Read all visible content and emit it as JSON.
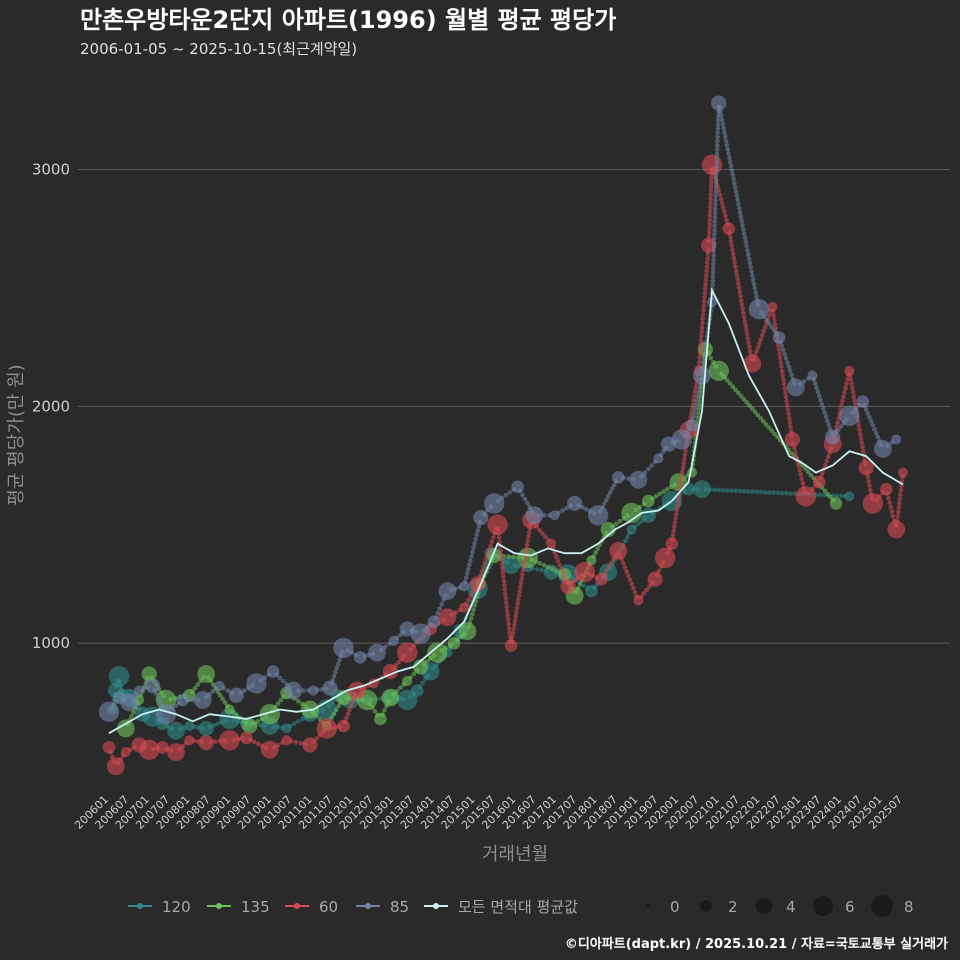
{
  "chart_data": {
    "type": "scatter",
    "title": "만촌우방타운2단지 아파트(1996) 월별 평균 평당가",
    "subtitle": "2006-01-05 ~ 2025-10-15(최근계약일)",
    "xlabel": "거래년월",
    "ylabel": "평균 평당가(만 원)",
    "ylim": [
      380,
      3420
    ],
    "yticks": [
      1000,
      2000,
      3000
    ],
    "xticks": [
      "200601",
      "200607",
      "200701",
      "200707",
      "200801",
      "200807",
      "200901",
      "200907",
      "201001",
      "201007",
      "201101",
      "201107",
      "201201",
      "201207",
      "201301",
      "201307",
      "201401",
      "201407",
      "201501",
      "201507",
      "201601",
      "201607",
      "201701",
      "201707",
      "201801",
      "201807",
      "201901",
      "201907",
      "202001",
      "202007",
      "202101",
      "202107",
      "202201",
      "202207",
      "202301",
      "202307",
      "202401",
      "202407",
      "202501",
      "202507"
    ],
    "x_range": [
      "2006-01",
      "2025-10"
    ],
    "grid": true,
    "series": [
      {
        "name": "120",
        "color": "#2e8b87",
        "points": [
          [
            "2006-02",
            720
          ],
          [
            "2006-03",
            800
          ],
          [
            "2006-04",
            860
          ],
          [
            "2006-05",
            780
          ],
          [
            "2006-07",
            770
          ],
          [
            "2006-09",
            740
          ],
          [
            "2006-11",
            700
          ],
          [
            "2007-02",
            690
          ],
          [
            "2007-05",
            660
          ],
          [
            "2007-09",
            630
          ],
          [
            "2008-01",
            650
          ],
          [
            "2008-06",
            640
          ],
          [
            "2009-01",
            680
          ],
          [
            "2009-06",
            660
          ],
          [
            "2010-01",
            650
          ],
          [
            "2010-06",
            640
          ],
          [
            "2011-01",
            700
          ],
          [
            "2011-06",
            720
          ],
          [
            "2011-09",
            780
          ],
          [
            "2012-01",
            760
          ],
          [
            "2012-06",
            760
          ],
          [
            "2013-01",
            770
          ],
          [
            "2013-06",
            760
          ],
          [
            "2013-09",
            800
          ],
          [
            "2014-01",
            880
          ],
          [
            "2014-06",
            960
          ],
          [
            "2014-10",
            1050
          ],
          [
            "2015-03",
            1230
          ],
          [
            "2015-07",
            1380
          ],
          [
            "2016-01",
            1330
          ],
          [
            "2016-06",
            1320
          ],
          [
            "2017-01",
            1300
          ],
          [
            "2017-06",
            1290
          ],
          [
            "2018-01",
            1220
          ],
          [
            "2018-06",
            1300
          ],
          [
            "2019-01",
            1480
          ],
          [
            "2019-06",
            1540
          ],
          [
            "2020-01",
            1600
          ],
          [
            "2020-06",
            1650
          ],
          [
            "2020-10",
            1650
          ],
          [
            "2024-06",
            1620
          ]
        ]
      },
      {
        "name": "135",
        "color": "#6ec35a",
        "points": [
          [
            "2006-06",
            640
          ],
          [
            "2006-10",
            760
          ],
          [
            "2007-01",
            870
          ],
          [
            "2007-06",
            760
          ],
          [
            "2008-01",
            780
          ],
          [
            "2008-06",
            870
          ],
          [
            "2009-01",
            720
          ],
          [
            "2009-07",
            650
          ],
          [
            "2010-01",
            700
          ],
          [
            "2010-06",
            790
          ],
          [
            "2011-01",
            720
          ],
          [
            "2011-06",
            650
          ],
          [
            "2011-11",
            770
          ],
          [
            "2012-06",
            760
          ],
          [
            "2012-10",
            680
          ],
          [
            "2013-01",
            770
          ],
          [
            "2013-06",
            840
          ],
          [
            "2013-10",
            900
          ],
          [
            "2014-03",
            960
          ],
          [
            "2014-08",
            1000
          ],
          [
            "2014-12",
            1050
          ],
          [
            "2015-04",
            1250
          ],
          [
            "2015-08",
            1370
          ],
          [
            "2016-06",
            1360
          ],
          [
            "2017-05",
            1290
          ],
          [
            "2017-08",
            1200
          ],
          [
            "2018-01",
            1350
          ],
          [
            "2018-06",
            1480
          ],
          [
            "2019-01",
            1550
          ],
          [
            "2019-06",
            1600
          ],
          [
            "2020-03",
            1680
          ],
          [
            "2020-07",
            1720
          ],
          [
            "2020-11",
            2240
          ],
          [
            "2021-03",
            2150
          ],
          [
            "2024-02",
            1590
          ]
        ]
      },
      {
        "name": "60",
        "color": "#d94a52",
        "points": [
          [
            "2006-01",
            560
          ],
          [
            "2006-03",
            480
          ],
          [
            "2006-06",
            540
          ],
          [
            "2006-10",
            570
          ],
          [
            "2007-01",
            550
          ],
          [
            "2007-05",
            560
          ],
          [
            "2007-09",
            540
          ],
          [
            "2008-01",
            590
          ],
          [
            "2008-06",
            580
          ],
          [
            "2009-01",
            590
          ],
          [
            "2009-06",
            600
          ],
          [
            "2010-01",
            550
          ],
          [
            "2010-06",
            590
          ],
          [
            "2011-01",
            570
          ],
          [
            "2011-06",
            640
          ],
          [
            "2011-11",
            650
          ],
          [
            "2012-03",
            800
          ],
          [
            "2012-08",
            830
          ],
          [
            "2013-01",
            880
          ],
          [
            "2013-06",
            960
          ],
          [
            "2014-01",
            1060
          ],
          [
            "2014-06",
            1110
          ],
          [
            "2014-11",
            1150
          ],
          [
            "2015-03",
            1250
          ],
          [
            "2015-09",
            1500
          ],
          [
            "2016-01",
            990
          ],
          [
            "2016-07",
            1520
          ],
          [
            "2017-01",
            1420
          ],
          [
            "2017-06",
            1240
          ],
          [
            "2017-11",
            1300
          ],
          [
            "2018-04",
            1270
          ],
          [
            "2018-09",
            1390
          ],
          [
            "2019-03",
            1180
          ],
          [
            "2019-08",
            1270
          ],
          [
            "2019-11",
            1360
          ],
          [
            "2020-01",
            1420
          ],
          [
            "2020-06",
            1900
          ],
          [
            "2020-09",
            2150
          ],
          [
            "2020-12",
            2680
          ],
          [
            "2021-01",
            3020
          ],
          [
            "2021-06",
            2750
          ],
          [
            "2022-01",
            2180
          ],
          [
            "2022-07",
            2420
          ],
          [
            "2023-01",
            1860
          ],
          [
            "2023-05",
            1620
          ],
          [
            "2023-09",
            1680
          ],
          [
            "2024-01",
            1840
          ],
          [
            "2024-06",
            2150
          ],
          [
            "2024-11",
            1740
          ],
          [
            "2025-01",
            1590
          ],
          [
            "2025-05",
            1650
          ],
          [
            "2025-08",
            1480
          ],
          [
            "2025-10",
            1720
          ]
        ]
      },
      {
        "name": "85",
        "color": "#7186a8",
        "points": [
          [
            "2006-01",
            710
          ],
          [
            "2006-04",
            770
          ],
          [
            "2006-07",
            750
          ],
          [
            "2006-10",
            800
          ],
          [
            "2007-02",
            820
          ],
          [
            "2007-06",
            700
          ],
          [
            "2007-11",
            760
          ],
          [
            "2008-05",
            760
          ],
          [
            "2008-10",
            820
          ],
          [
            "2009-03",
            780
          ],
          [
            "2009-09",
            830
          ],
          [
            "2010-02",
            880
          ],
          [
            "2010-08",
            800
          ],
          [
            "2011-02",
            800
          ],
          [
            "2011-07",
            810
          ],
          [
            "2011-11",
            980
          ],
          [
            "2012-04",
            940
          ],
          [
            "2012-09",
            960
          ],
          [
            "2013-02",
            1010
          ],
          [
            "2013-06",
            1060
          ],
          [
            "2013-10",
            1040
          ],
          [
            "2014-02",
            1090
          ],
          [
            "2014-06",
            1220
          ],
          [
            "2014-11",
            1240
          ],
          [
            "2015-04",
            1530
          ],
          [
            "2015-08",
            1590
          ],
          [
            "2016-03",
            1660
          ],
          [
            "2016-08",
            1540
          ],
          [
            "2017-02",
            1540
          ],
          [
            "2017-08",
            1590
          ],
          [
            "2018-03",
            1540
          ],
          [
            "2018-09",
            1700
          ],
          [
            "2019-03",
            1690
          ],
          [
            "2019-09",
            1780
          ],
          [
            "2019-12",
            1840
          ],
          [
            "2020-04",
            1860
          ],
          [
            "2020-07",
            1920
          ],
          [
            "2020-10",
            2130
          ],
          [
            "2021-01",
            2440
          ],
          [
            "2021-03",
            3280
          ],
          [
            "2022-03",
            2410
          ],
          [
            "2022-09",
            2290
          ],
          [
            "2023-02",
            2080
          ],
          [
            "2023-07",
            2130
          ],
          [
            "2024-01",
            1870
          ],
          [
            "2024-06",
            1960
          ],
          [
            "2024-10",
            2020
          ],
          [
            "2025-04",
            1820
          ],
          [
            "2025-08",
            1860
          ]
        ]
      }
    ],
    "average_series": {
      "name": "모든 면적대 평균값",
      "color": "#c9f0f2",
      "points": [
        [
          "2006-01",
          620
        ],
        [
          "2006-06",
          660
        ],
        [
          "2006-11",
          700
        ],
        [
          "2007-04",
          720
        ],
        [
          "2007-09",
          700
        ],
        [
          "2008-02",
          670
        ],
        [
          "2008-07",
          700
        ],
        [
          "2009-01",
          690
        ],
        [
          "2009-06",
          680
        ],
        [
          "2009-11",
          700
        ],
        [
          "2010-04",
          720
        ],
        [
          "2010-09",
          710
        ],
        [
          "2011-02",
          720
        ],
        [
          "2011-07",
          760
        ],
        [
          "2011-12",
          800
        ],
        [
          "2012-05",
          820
        ],
        [
          "2012-10",
          850
        ],
        [
          "2013-03",
          880
        ],
        [
          "2013-08",
          900
        ],
        [
          "2014-01",
          960
        ],
        [
          "2014-06",
          1020
        ],
        [
          "2014-11",
          1090
        ],
        [
          "2015-04",
          1250
        ],
        [
          "2015-09",
          1420
        ],
        [
          "2016-02",
          1380
        ],
        [
          "2016-07",
          1370
        ],
        [
          "2016-12",
          1400
        ],
        [
          "2017-05",
          1380
        ],
        [
          "2017-10",
          1380
        ],
        [
          "2018-03",
          1420
        ],
        [
          "2018-08",
          1480
        ],
        [
          "2018-12",
          1510
        ],
        [
          "2019-04",
          1550
        ],
        [
          "2019-09",
          1560
        ],
        [
          "2020-01",
          1600
        ],
        [
          "2020-06",
          1680
        ],
        [
          "2020-10",
          1980
        ],
        [
          "2021-01",
          2490
        ],
        [
          "2021-06",
          2350
        ],
        [
          "2021-12",
          2130
        ],
        [
          "2022-06",
          1980
        ],
        [
          "2022-12",
          1790
        ],
        [
          "2023-04",
          1760
        ],
        [
          "2023-08",
          1720
        ],
        [
          "2024-01",
          1750
        ],
        [
          "2024-06",
          1810
        ],
        [
          "2024-11",
          1790
        ],
        [
          "2025-04",
          1720
        ],
        [
          "2025-10",
          1670
        ]
      ]
    },
    "legend": {
      "series_labels": [
        "120",
        "135",
        "60",
        "85",
        "모든 면적대 평균값"
      ],
      "size_labels": [
        "0",
        "2",
        "4",
        "6",
        "8"
      ]
    }
  },
  "footer": "©디아파트(dapt.kr) / 2025.10.21 / 자료=국토교통부 실거래가"
}
